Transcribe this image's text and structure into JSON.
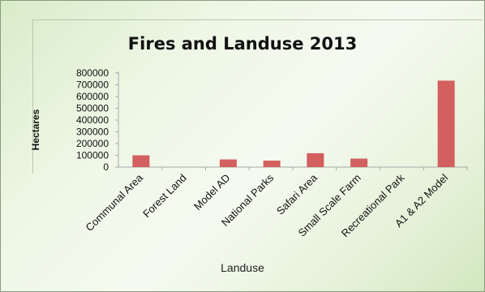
{
  "chart_data": {
    "type": "bar",
    "title": "Fires and Landuse 2013",
    "xlabel": "Landuse",
    "ylabel": "Hectares",
    "categories": [
      "Communal Area",
      "Forest Land",
      "Model AD",
      "National Parks",
      "Safari Area",
      "Small Scale Farm",
      "Recreational Park",
      "A1 & A2 Model"
    ],
    "values": [
      100000,
      0,
      65000,
      55000,
      118000,
      72000,
      0,
      735000
    ],
    "ylim": [
      0,
      800000
    ],
    "yticks": [
      "800000",
      "700000",
      "600000",
      "500000",
      "400000",
      "300000",
      "200000",
      "100000",
      "0"
    ],
    "grid": false,
    "legend": "none",
    "bar_color": "#d35f5f"
  }
}
